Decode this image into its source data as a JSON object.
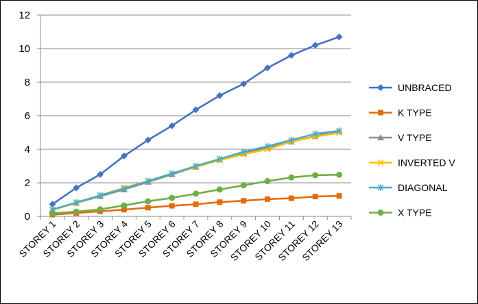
{
  "chart_data": {
    "type": "line",
    "title": "",
    "xlabel": "",
    "ylabel": "",
    "ylim": [
      0,
      12
    ],
    "yticks": [
      0,
      2,
      4,
      6,
      8,
      10,
      12
    ],
    "grid": "horizontal",
    "legend_position": "right",
    "categories": [
      "STOREY 1",
      "STOREY 2",
      "STOREY 3",
      "STOREY 4",
      "STOREY 5",
      "STOREY 6",
      "STOREY 7",
      "STOREY 8",
      "STOREY 9",
      "STOREY 10",
      "STOREY 11",
      "STOREY 12",
      "STOREY 13"
    ],
    "series": [
      {
        "name": "UNBRACED",
        "color": "#4472C4",
        "marker": "diamond",
        "values": [
          0.72,
          1.7,
          2.5,
          3.6,
          4.55,
          5.4,
          6.35,
          7.2,
          7.9,
          8.85,
          9.6,
          10.2,
          10.7
        ]
      },
      {
        "name": "K TYPE",
        "color": "#E46C0A",
        "marker": "square",
        "values": [
          0.1,
          0.2,
          0.3,
          0.4,
          0.52,
          0.63,
          0.72,
          0.85,
          0.93,
          1.03,
          1.08,
          1.18,
          1.22
        ]
      },
      {
        "name": "V TYPE",
        "color": "#8C8C8C",
        "marker": "triangle",
        "values": [
          0.4,
          0.8,
          1.2,
          1.6,
          2.05,
          2.5,
          2.95,
          3.38,
          3.75,
          4.1,
          4.45,
          4.78,
          5.08
        ]
      },
      {
        "name": "INVERTED V",
        "color": "#FFC000",
        "marker": "x",
        "values": [
          0.38,
          0.8,
          1.25,
          1.7,
          2.1,
          2.55,
          2.95,
          3.35,
          3.7,
          4.0,
          4.45,
          4.75,
          4.98
        ]
      },
      {
        "name": "DIAGONAL",
        "color": "#4BACC6",
        "marker": "star",
        "values": [
          0.4,
          0.83,
          1.25,
          1.65,
          2.1,
          2.55,
          3.0,
          3.42,
          3.85,
          4.18,
          4.55,
          4.92,
          5.1
        ]
      },
      {
        "name": "X TYPE",
        "color": "#70AD47",
        "marker": "circle",
        "values": [
          0.18,
          0.28,
          0.42,
          0.65,
          0.9,
          1.1,
          1.35,
          1.6,
          1.85,
          2.1,
          2.32,
          2.45,
          2.48
        ]
      }
    ]
  }
}
